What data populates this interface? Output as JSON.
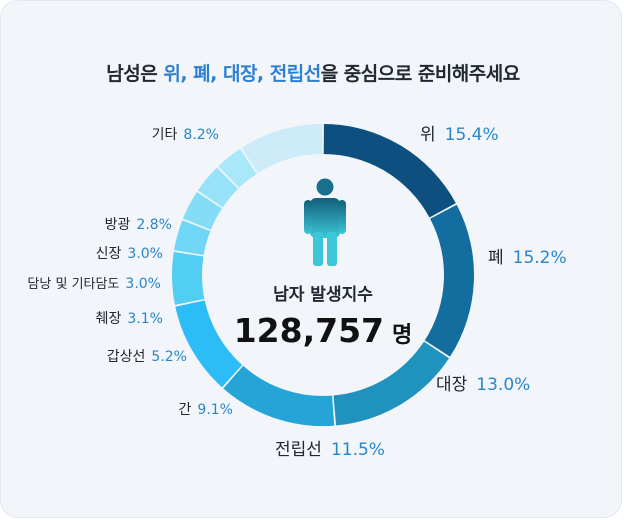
{
  "headline": {
    "prefix": "남성은 ",
    "highlight": "위, 폐, 대장, 전립선",
    "suffix": "을 중심으로 준비해주세요"
  },
  "center": {
    "icon": "male-person-icon",
    "label": "남자 발생지수",
    "value": "128,757",
    "unit": "명"
  },
  "colors": {
    "name_text": "#222831",
    "percent_text": "#2a86c8",
    "highlight_text": "#2f7fd0"
  },
  "chart_data": {
    "type": "pie",
    "donut": true,
    "start_angle_deg": 0,
    "direction": "clockwise",
    "slices": [
      {
        "name": "위",
        "value": 15.4,
        "pct_label": "15.4%",
        "color": "#0d4f7f"
      },
      {
        "name": "폐",
        "value": 15.2,
        "pct_label": "15.2%",
        "color": "#146d9f"
      },
      {
        "name": "대장",
        "value": 13.0,
        "pct_label": "13.0%",
        "color": "#1f93bd"
      },
      {
        "name": "전립선",
        "value": 11.5,
        "pct_label": "11.5%",
        "color": "#25a4d8"
      },
      {
        "name": "간",
        "value": 9.1,
        "pct_label": "9.1%",
        "color": "#2cbcf6"
      },
      {
        "name": "갑상선",
        "value": 5.2,
        "pct_label": "5.2%",
        "color": "#52cdf4"
      },
      {
        "name": "췌장",
        "value": 3.1,
        "pct_label": "3.1%",
        "color": "#6fd6f6"
      },
      {
        "name": "담낭 및 기타담도",
        "value": 3.0,
        "pct_label": "3.0%",
        "color": "#84ddf7"
      },
      {
        "name": "신장",
        "value": 3.0,
        "pct_label": "3.0%",
        "color": "#97e2f8"
      },
      {
        "name": "방광",
        "value": 2.8,
        "pct_label": "2.8%",
        "color": "#a9e8f9"
      },
      {
        "name": "기타",
        "value": 8.2,
        "pct_label": "8.2%",
        "color": "#cdebf9"
      }
    ]
  }
}
